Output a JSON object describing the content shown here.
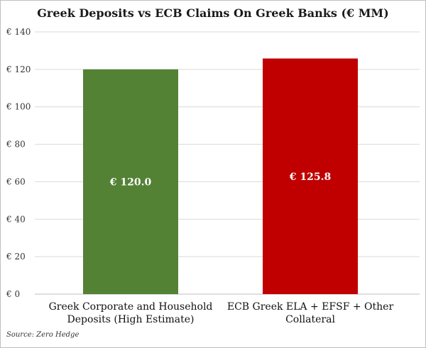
{
  "chart_data": {
    "type": "bar",
    "title": "Greek Deposits vs ECB Claims  On Greek Banks (€ MM)",
    "categories": [
      [
        "Greek Corporate and Household",
        "Deposits (High Estimate)"
      ],
      [
        "ECB Greek ELA + EFSF + Other",
        "Collateral"
      ]
    ],
    "values": [
      120.0,
      125.8
    ],
    "data_labels": [
      "€ 120.0",
      "€ 125.8"
    ],
    "bar_colors": [
      "#548235",
      "#c00000"
    ],
    "ylim": [
      0,
      140
    ],
    "yticks": [
      0,
      20,
      40,
      60,
      80,
      100,
      120,
      140
    ],
    "ytick_labels": [
      "€ 0",
      "€ 20",
      "€ 40",
      "€ 60",
      "€ 80",
      "€ 100",
      "€ 120",
      "€ 140"
    ],
    "grid": true,
    "xlabel": "",
    "ylabel": ""
  },
  "source": "Source: Zero Hedge"
}
